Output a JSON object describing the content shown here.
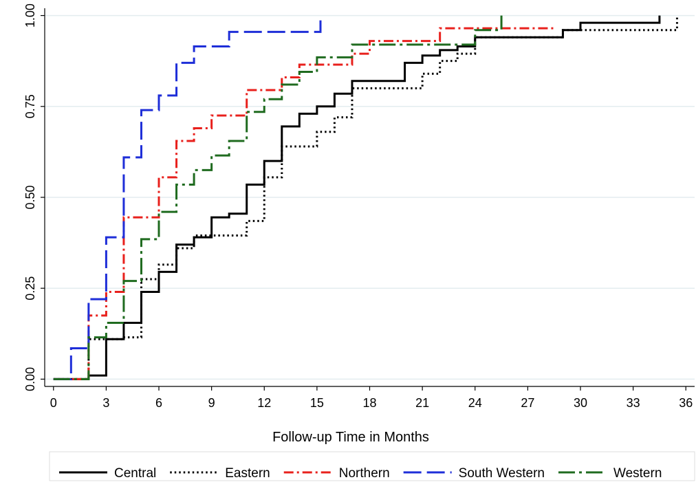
{
  "chart_data": {
    "type": "line",
    "step": true,
    "title": "",
    "xlabel": "Follow-up Time in Months",
    "ylabel": "",
    "xlim": [
      -0.5,
      36.5
    ],
    "ylim": [
      -0.02,
      1.02
    ],
    "xticks": [
      0,
      3,
      6,
      9,
      12,
      15,
      18,
      21,
      24,
      27,
      30,
      33,
      36
    ],
    "xtick_labels": [
      "0",
      "3",
      "6",
      "9",
      "12",
      "15",
      "18",
      "21",
      "24",
      "27",
      "30",
      "33",
      "36"
    ],
    "yticks": [
      0,
      0.25,
      0.5,
      0.75,
      1.0
    ],
    "ytick_labels": [
      "0.00",
      "0.25",
      "0.50",
      "0.75",
      "1.00"
    ],
    "grid": "horizontal",
    "legend_position": "bottom",
    "series": [
      {
        "name": "Central",
        "color": "#000000",
        "dash": "solid",
        "x": [
          0,
          2,
          3,
          4,
          5,
          6,
          7,
          8,
          9,
          10,
          11,
          12,
          13,
          14,
          15,
          16,
          17,
          20,
          21,
          22,
          23,
          24,
          29,
          30,
          34.5
        ],
        "y": [
          0,
          0.01,
          0.11,
          0.155,
          0.24,
          0.295,
          0.37,
          0.39,
          0.445,
          0.455,
          0.535,
          0.6,
          0.695,
          0.73,
          0.75,
          0.785,
          0.82,
          0.87,
          0.89,
          0.905,
          0.915,
          0.94,
          0.96,
          0.98,
          1.0
        ]
      },
      {
        "name": "Eastern",
        "color": "#000000",
        "dash": "dot",
        "x": [
          0,
          2,
          4,
          5,
          6,
          7,
          8,
          9,
          11,
          12,
          13,
          14,
          15,
          16,
          17,
          21,
          22,
          23,
          24,
          29,
          35.5
        ],
        "y": [
          0,
          0.11,
          0.115,
          0.275,
          0.315,
          0.36,
          0.395,
          0.395,
          0.435,
          0.555,
          0.64,
          0.64,
          0.68,
          0.72,
          0.8,
          0.84,
          0.875,
          0.895,
          0.94,
          0.96,
          1.0
        ]
      },
      {
        "name": "Northern",
        "color": "#e8201c",
        "dash": "dashdot",
        "x": [
          0,
          2,
          3,
          4,
          6,
          7,
          8,
          9,
          11,
          13,
          14,
          15,
          17,
          18,
          22,
          28,
          28.5
        ],
        "y": [
          0,
          0.175,
          0.24,
          0.445,
          0.555,
          0.655,
          0.69,
          0.725,
          0.795,
          0.83,
          0.865,
          0.865,
          0.895,
          0.93,
          0.965,
          0.965,
          0.965
        ]
      },
      {
        "name": "South Western",
        "color": "#1e2ed8",
        "dash": "longdash",
        "x": [
          0,
          1,
          2,
          3,
          4,
          5,
          6,
          7,
          8,
          10,
          15.2
        ],
        "y": [
          0,
          0.085,
          0.22,
          0.39,
          0.61,
          0.74,
          0.78,
          0.87,
          0.915,
          0.955,
          1.0
        ]
      },
      {
        "name": "Western",
        "color": "#1f6b1f",
        "dash": "longdashdot",
        "x": [
          0,
          2,
          3,
          4,
          5,
          6,
          7,
          8,
          9,
          10,
          11,
          12,
          13,
          14,
          15,
          17,
          24,
          25.5
        ],
        "y": [
          0,
          0.115,
          0.155,
          0.27,
          0.385,
          0.46,
          0.535,
          0.575,
          0.615,
          0.655,
          0.735,
          0.77,
          0.81,
          0.845,
          0.885,
          0.92,
          0.96,
          1.0
        ]
      }
    ]
  }
}
